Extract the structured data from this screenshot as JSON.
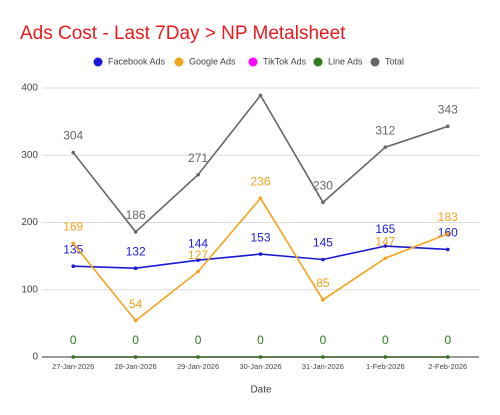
{
  "chart_data": {
    "type": "line",
    "title": "Ads Cost - Last 7Day > NP Metalsheet",
    "x_label": "Date",
    "categories": [
      "27-Jan-2026",
      "28-Jan-2026",
      "29-Jan-2026",
      "30-Jan-2026",
      "31-Jan-2026",
      "1-Feb-2026",
      "2-Feb-2026"
    ],
    "series": [
      {
        "name": "Facebook Ads",
        "color": "#1a1ad6",
        "labels": true,
        "values": [
          135,
          132,
          144,
          153,
          145,
          165,
          160
        ]
      },
      {
        "name": "Google Ads",
        "color": "#f5a31a",
        "labels": true,
        "values": [
          169,
          54,
          127,
          236,
          85,
          147,
          183
        ]
      },
      {
        "name": "TikTok Ads",
        "color": "#ff00ff",
        "labels": false,
        "values": [
          0,
          0,
          0,
          0,
          0,
          0,
          0
        ]
      },
      {
        "name": "Line Ads",
        "color": "#2e7d1e",
        "labels": true,
        "values": [
          0,
          0,
          0,
          0,
          0,
          0,
          0
        ]
      },
      {
        "name": "Total",
        "color": "#666666",
        "labels": true,
        "values": [
          304,
          186,
          271,
          389,
          230,
          312,
          343
        ],
        "value_labels": [
          "304",
          "186",
          "271",
          null,
          "230",
          "312",
          "343"
        ]
      }
    ],
    "ylim": [
      0,
      400
    ],
    "yticks": [
      0,
      100,
      200,
      300,
      400
    ],
    "grid": true,
    "legend": "top"
  }
}
